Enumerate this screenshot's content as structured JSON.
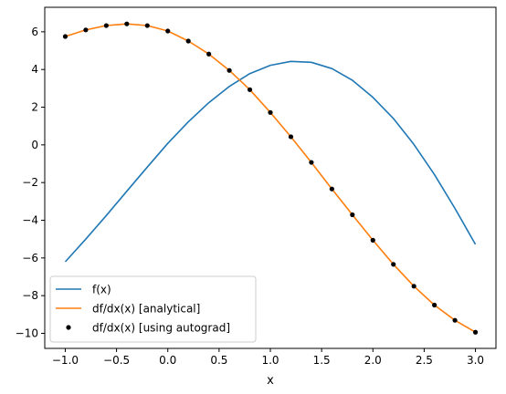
{
  "chart_data": {
    "type": "line",
    "title": "",
    "xlabel": "x",
    "ylabel": "",
    "xlim": [
      -1.2,
      3.2
    ],
    "ylim": [
      -10.8,
      7.3
    ],
    "xticks": [
      -1.0,
      -0.5,
      0.0,
      0.5,
      1.0,
      1.5,
      2.0,
      2.5,
      3.0
    ],
    "xtick_labels": [
      "−1.0",
      "−0.5",
      "0.0",
      "0.5",
      "1.0",
      "1.5",
      "2.0",
      "2.5",
      "3.0"
    ],
    "yticks": [
      -10,
      -8,
      -6,
      -4,
      -2,
      0,
      2,
      4,
      6
    ],
    "ytick_labels": [
      "−10",
      "−8",
      "−6",
      "−4",
      "−2",
      "0",
      "2",
      "4",
      "6"
    ],
    "grid": false,
    "legend_position": "lower-left",
    "series": [
      {
        "name": "f(x)",
        "style": "line",
        "color": "#1f77b4",
        "x": [
          -1.0,
          -0.8,
          -0.6,
          -0.4,
          -0.2,
          0.0,
          0.2,
          0.4,
          0.6,
          0.8,
          1.0,
          1.2,
          1.4,
          1.6,
          1.8,
          2.0,
          2.2,
          2.4,
          2.6,
          2.8,
          3.0
        ],
        "y": [
          -6.2,
          -5.0,
          -3.75,
          -2.46,
          -1.18,
          0.08,
          1.22,
          2.24,
          3.1,
          3.78,
          4.22,
          4.43,
          4.38,
          4.05,
          3.43,
          2.52,
          1.4,
          0.02,
          -1.57,
          -3.37,
          -5.28
        ]
      },
      {
        "name": "df/dx(x) [analytical]",
        "style": "line",
        "color": "#ff7f0e",
        "x": [
          -1.0,
          -0.8,
          -0.6,
          -0.4,
          -0.2,
          0.0,
          0.2,
          0.4,
          0.6,
          0.8,
          1.0,
          1.2,
          1.4,
          1.6,
          1.8,
          2.0,
          2.2,
          2.4,
          2.6,
          2.8,
          3.0
        ],
        "y": [
          5.75,
          6.1,
          6.33,
          6.42,
          6.33,
          6.04,
          5.51,
          4.82,
          3.95,
          2.93,
          1.72,
          0.43,
          -0.93,
          -2.34,
          -3.71,
          -5.06,
          -6.34,
          -7.5,
          -8.5,
          -9.31,
          -9.94
        ]
      },
      {
        "name": "df/dx(x) [using autograd]",
        "style": "markers",
        "color": "#000000",
        "x": [
          -1.0,
          -0.8,
          -0.6,
          -0.4,
          -0.2,
          0.0,
          0.2,
          0.4,
          0.6,
          0.8,
          1.0,
          1.2,
          1.4,
          1.6,
          1.8,
          2.0,
          2.2,
          2.4,
          2.6,
          2.8,
          3.0
        ],
        "y": [
          5.75,
          6.1,
          6.33,
          6.42,
          6.33,
          6.04,
          5.51,
          4.82,
          3.95,
          2.93,
          1.72,
          0.43,
          -0.93,
          -2.34,
          -3.71,
          -5.06,
          -6.34,
          -7.5,
          -8.5,
          -9.31,
          -9.94
        ]
      }
    ]
  }
}
